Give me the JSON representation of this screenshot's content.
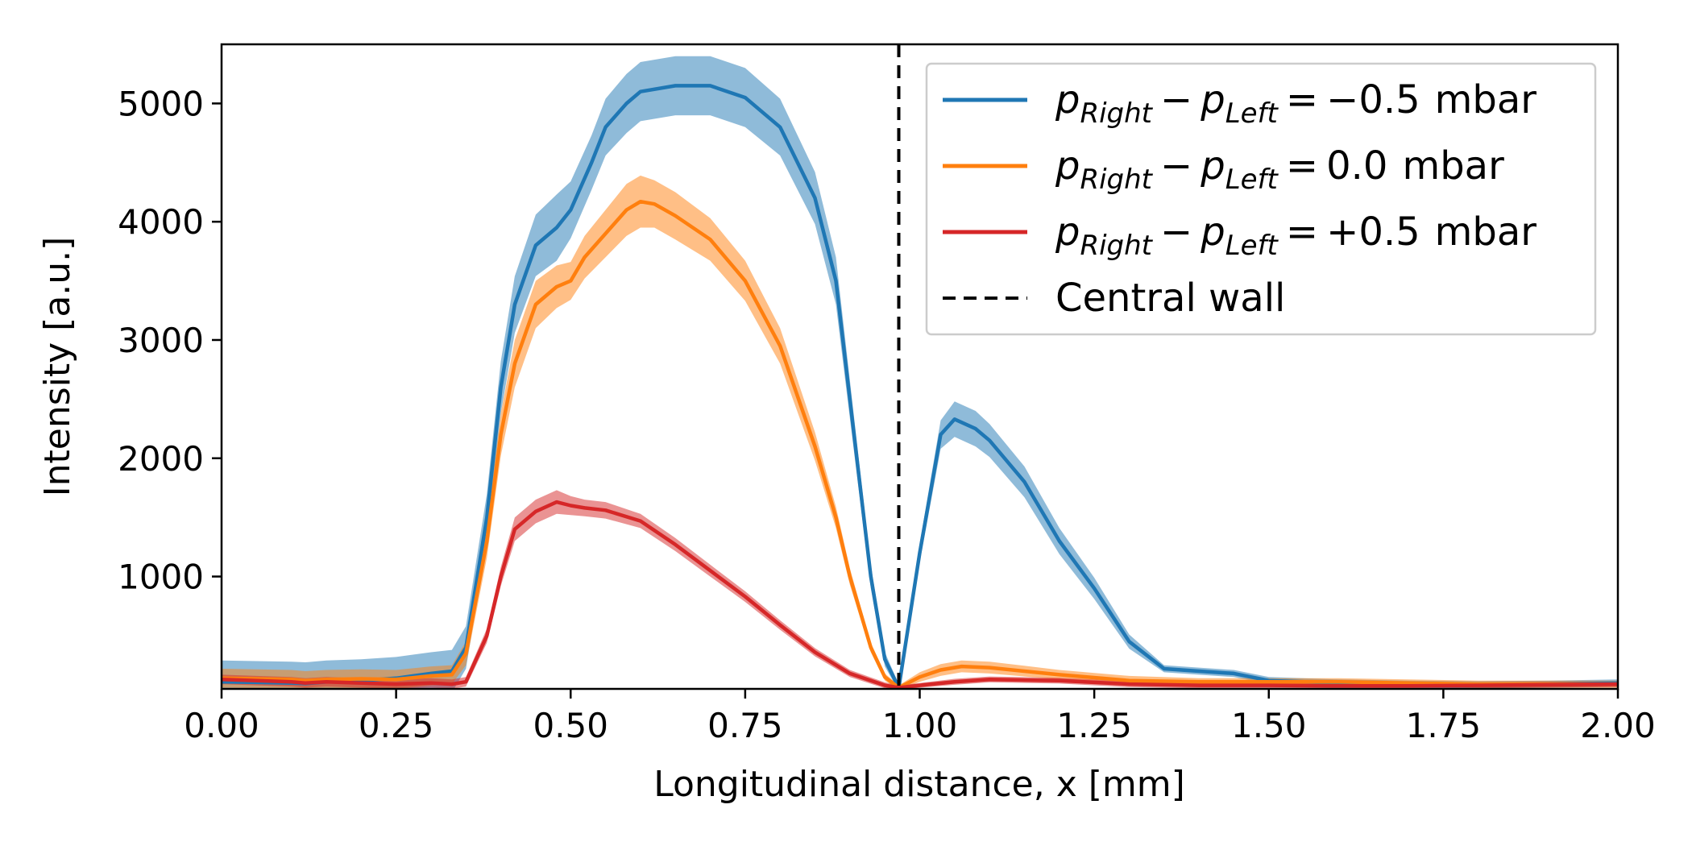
{
  "chart_data": {
    "type": "line",
    "xlabel": "Longitudinal distance, x [mm]",
    "ylabel": "Intensity [a.u.]",
    "xlim": [
      0.0,
      2.0
    ],
    "ylim": [
      50,
      5500
    ],
    "x_ticks": [
      0.0,
      0.25,
      0.5,
      0.75,
      1.0,
      1.25,
      1.5,
      1.75,
      2.0
    ],
    "x_tick_labels": [
      "0.00",
      "0.25",
      "0.50",
      "0.75",
      "1.00",
      "1.25",
      "1.50",
      "1.75",
      "2.00"
    ],
    "y_ticks": [
      1000,
      2000,
      3000,
      4000,
      5000
    ],
    "y_tick_labels": [
      "1000",
      "2000",
      "3000",
      "4000",
      "5000"
    ],
    "grid": false,
    "legend_position": "top-right",
    "central_wall": {
      "x": 0.97,
      "label": "Central wall",
      "color": "#000000"
    },
    "legend_parts": {
      "p": "p",
      "sub_right": "Right",
      "sub_left": "Left",
      "minus": "−",
      "equals": "=",
      "unit": "mbar"
    },
    "series": [
      {
        "name": "p_Right − p_Left = −0.5 mbar",
        "value_label": "−0.5",
        "color": "#1f77b4",
        "x": [
          0.0,
          0.05,
          0.1,
          0.12,
          0.15,
          0.2,
          0.25,
          0.3,
          0.33,
          0.35,
          0.38,
          0.4,
          0.42,
          0.45,
          0.48,
          0.5,
          0.53,
          0.55,
          0.58,
          0.6,
          0.65,
          0.7,
          0.75,
          0.8,
          0.85,
          0.88,
          0.9,
          0.93,
          0.95,
          0.97,
          1.0,
          1.03,
          1.05,
          1.08,
          1.1,
          1.15,
          1.2,
          1.25,
          1.3,
          1.35,
          1.4,
          1.45,
          1.5,
          1.6,
          1.7,
          1.8,
          1.9,
          2.0
        ],
        "y": [
          110,
          105,
          100,
          95,
          110,
          120,
          140,
          180,
          200,
          400,
          1500,
          2600,
          3300,
          3800,
          3950,
          4100,
          4500,
          4800,
          5000,
          5100,
          5150,
          5150,
          5050,
          4800,
          4200,
          3500,
          2500,
          1000,
          300,
          60,
          1200,
          2200,
          2330,
          2250,
          2150,
          1800,
          1300,
          900,
          450,
          220,
          200,
          180,
          120,
          100,
          90,
          85,
          90,
          100
        ],
        "band": [
          180,
          180,
          180,
          180,
          180,
          180,
          180,
          180,
          180,
          180,
          200,
          220,
          240,
          260,
          280,
          240,
          230,
          240,
          250,
          250,
          250,
          250,
          250,
          240,
          220,
          200,
          160,
          100,
          60,
          30,
          80,
          120,
          150,
          150,
          140,
          130,
          110,
          90,
          60,
          30,
          30,
          30,
          30,
          30,
          30,
          30,
          30,
          30
        ]
      },
      {
        "name": "p_Right − p_Left = 0.0 mbar",
        "value_label": "0.0",
        "color": "#ff7f0e",
        "x": [
          0.0,
          0.05,
          0.1,
          0.12,
          0.15,
          0.2,
          0.25,
          0.3,
          0.33,
          0.35,
          0.38,
          0.4,
          0.42,
          0.45,
          0.48,
          0.5,
          0.52,
          0.55,
          0.58,
          0.6,
          0.62,
          0.65,
          0.7,
          0.75,
          0.8,
          0.85,
          0.88,
          0.9,
          0.93,
          0.95,
          0.97,
          1.0,
          1.03,
          1.06,
          1.1,
          1.2,
          1.3,
          1.4,
          1.5,
          1.6,
          1.7,
          1.8,
          1.9,
          2.0
        ],
        "y": [
          140,
          135,
          130,
          120,
          130,
          135,
          130,
          160,
          170,
          350,
          1300,
          2200,
          2800,
          3300,
          3450,
          3500,
          3700,
          3900,
          4100,
          4170,
          4150,
          4050,
          3850,
          3500,
          2950,
          2100,
          1500,
          1000,
          400,
          150,
          60,
          150,
          210,
          240,
          230,
          170,
          120,
          110,
          110,
          110,
          100,
          90,
          90,
          90
        ],
        "band": [
          80,
          80,
          80,
          80,
          80,
          80,
          80,
          80,
          80,
          100,
          140,
          180,
          200,
          200,
          180,
          160,
          180,
          200,
          220,
          220,
          200,
          200,
          180,
          170,
          150,
          120,
          90,
          70,
          40,
          30,
          20,
          40,
          50,
          50,
          50,
          40,
          40,
          30,
          30,
          30,
          30,
          30,
          30,
          30
        ]
      },
      {
        "name": "p_Right − p_Left = +0.5 mbar",
        "value_label": "+0.5",
        "color": "#d62728",
        "x": [
          0.0,
          0.05,
          0.1,
          0.12,
          0.15,
          0.2,
          0.25,
          0.3,
          0.33,
          0.35,
          0.38,
          0.4,
          0.42,
          0.45,
          0.48,
          0.5,
          0.52,
          0.55,
          0.6,
          0.65,
          0.7,
          0.75,
          0.8,
          0.85,
          0.9,
          0.95,
          0.97,
          1.0,
          1.05,
          1.1,
          1.2,
          1.3,
          1.4,
          1.5,
          1.6,
          1.7,
          1.8,
          1.9,
          2.0
        ],
        "y": [
          130,
          120,
          110,
          100,
          110,
          100,
          90,
          100,
          90,
          110,
          500,
          1000,
          1400,
          1550,
          1630,
          1600,
          1580,
          1560,
          1470,
          1270,
          1050,
          830,
          590,
          360,
          180,
          80,
          60,
          80,
          110,
          130,
          120,
          90,
          80,
          80,
          75,
          75,
          80,
          85,
          90
        ],
        "band": [
          40,
          40,
          40,
          40,
          40,
          40,
          40,
          40,
          40,
          40,
          60,
          80,
          100,
          100,
          100,
          80,
          70,
          70,
          60,
          55,
          50,
          45,
          40,
          35,
          30,
          25,
          20,
          20,
          25,
          25,
          25,
          25,
          25,
          25,
          25,
          25,
          25,
          25,
          25
        ]
      }
    ]
  }
}
